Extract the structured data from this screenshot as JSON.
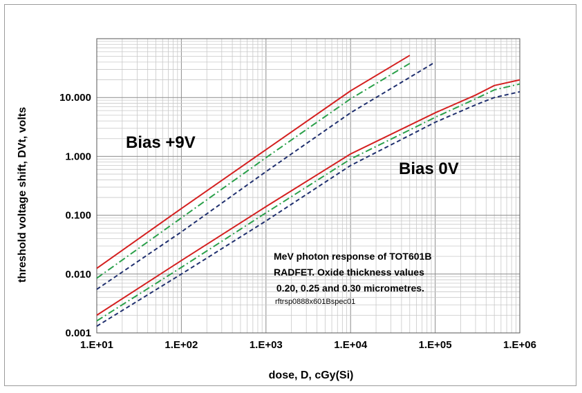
{
  "chart_data": {
    "type": "line",
    "x_scale": "log",
    "y_scale": "log",
    "xlabel": "dose, D, cGy(Si)",
    "ylabel": "threshold voltage shift, DVt, volts",
    "xlim": [
      10,
      1000000
    ],
    "ylim": [
      0.001,
      100
    ],
    "x_tick_labels": [
      "1.E+01",
      "1.E+02",
      "1.E+03",
      "1.E+04",
      "1.E+05",
      "1.E+06"
    ],
    "y_tick_labels": [
      "0.001",
      "0.010",
      "0.100",
      "1.000",
      "10.000"
    ],
    "y_tick_values": [
      0.001,
      0.01,
      0.1,
      1,
      10
    ],
    "grid": true,
    "legend": "none",
    "annotations": {
      "bias9": "Bias +9V",
      "bias0": "Bias 0V",
      "note_lines": [
        "MeV photon response of TOT601B",
        "RADFET.  Oxide thickness values",
        " 0.20, 0.25 and 0.30 micrometres."
      ],
      "code": "rftrsp0888x601Bspec01"
    },
    "series": [
      {
        "style": "solid",
        "color": "#d42020",
        "group": "Bias +9V",
        "x": [
          10,
          100,
          1000,
          10000,
          50000
        ],
        "y": [
          0.0125,
          0.13,
          1.3,
          13,
          52
        ]
      },
      {
        "style": "dash-dot",
        "color": "#2aa04a",
        "group": "Bias +9V",
        "x": [
          10,
          100,
          1000,
          10000,
          50000
        ],
        "y": [
          0.0085,
          0.09,
          0.95,
          9.5,
          38
        ]
      },
      {
        "style": "dashed",
        "color": "#1f2f6e",
        "group": "Bias +9V",
        "x": [
          10,
          100,
          1000,
          10000,
          100000
        ],
        "y": [
          0.0055,
          0.052,
          0.55,
          5.5,
          40
        ]
      },
      {
        "style": "solid",
        "color": "#d42020",
        "group": "Bias 0V",
        "x": [
          10,
          100,
          1000,
          10000,
          100000,
          300000,
          500000,
          1000000
        ],
        "y": [
          0.002,
          0.017,
          0.14,
          1.1,
          5.5,
          11,
          16,
          20
        ]
      },
      {
        "style": "dash-dot",
        "color": "#2aa04a",
        "group": "Bias 0V",
        "x": [
          10,
          100,
          1000,
          10000,
          100000,
          300000,
          500000,
          1000000
        ],
        "y": [
          0.0016,
          0.013,
          0.11,
          0.9,
          4.6,
          9.5,
          13.5,
          17
        ]
      },
      {
        "style": "dashed",
        "color": "#1f2f6e",
        "group": "Bias 0V",
        "x": [
          10,
          100,
          1000,
          10000,
          100000,
          300000,
          500000,
          1000000
        ],
        "y": [
          0.0013,
          0.01,
          0.08,
          0.7,
          3.8,
          7.5,
          10,
          12.5
        ]
      }
    ]
  }
}
